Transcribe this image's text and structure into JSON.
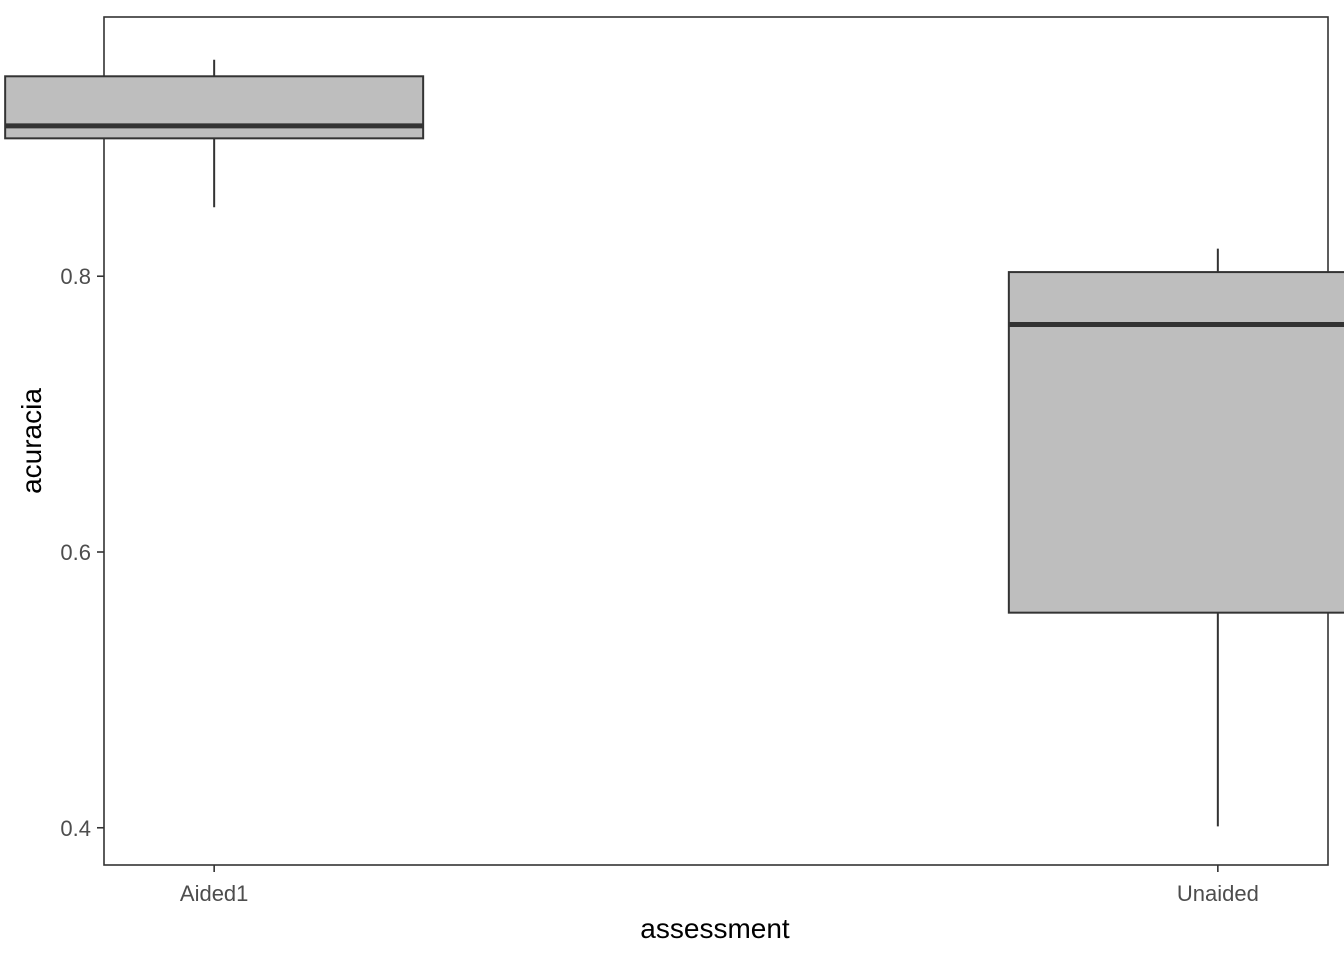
{
  "chart_data": {
    "type": "box",
    "title": "",
    "xlabel": "assessment",
    "ylabel": "acuracia",
    "categories": [
      "Aided1",
      "Unaided"
    ],
    "boxes": [
      {
        "category": "Aided1",
        "whisker_low": 0.85,
        "q1": 0.9,
        "median": 0.909,
        "q3": 0.945,
        "whisker_high": 0.957
      },
      {
        "category": "Unaided",
        "whisker_low": 0.401,
        "q1": 0.556,
        "median": 0.765,
        "q3": 0.803,
        "whisker_high": 0.82
      }
    ],
    "yticks": [
      0.4,
      0.6,
      0.8
    ],
    "ytick_labels": [
      "0.4",
      "0.6",
      "0.8"
    ],
    "ylim": [
      0.373,
      0.988
    ],
    "grid": false,
    "colors": {
      "box_fill": "#bebebe",
      "box_stroke": "#333333",
      "panel_border": "#333333",
      "tick_text": "#4d4d4d",
      "title_text": "#000000"
    }
  }
}
